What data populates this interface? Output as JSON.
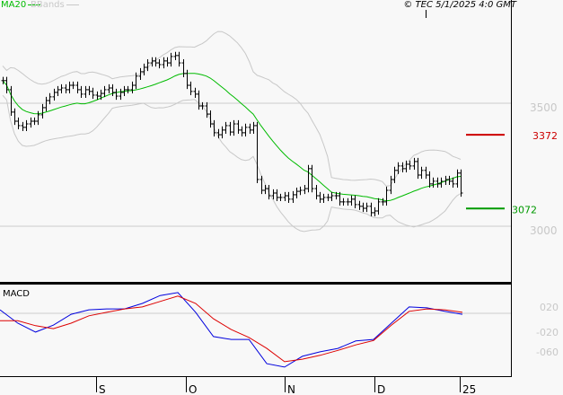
{
  "header": {
    "legend": [
      {
        "name": "MA20",
        "color": "#00bb00"
      },
      {
        "name": "BBands",
        "color": "#c8c8c8"
      }
    ],
    "copyright": "© TEC 5/1/2025 4:0 GMT"
  },
  "chart_data": [
    {
      "type": "ohlc-bar",
      "panel": "price",
      "overlays": [
        "MA20",
        "BBands"
      ],
      "y_ticks": [
        {
          "value": 35.0,
          "label": "3500"
        },
        {
          "value": 30.0,
          "label": "3000"
        }
      ],
      "grid": true,
      "markers": [
        {
          "label": "3372",
          "value": 33.72,
          "color": "#cc0000"
        },
        {
          "label": "3072",
          "value": 30.72,
          "color": "#009900"
        }
      ],
      "closes": [
        35.92,
        35.55,
        34.64,
        34.27,
        34.09,
        34.02,
        34.16,
        34.27,
        34.27,
        34.53,
        34.82,
        35.11,
        35.26,
        35.44,
        35.55,
        35.62,
        35.55,
        35.73,
        35.73,
        35.55,
        35.37,
        35.55,
        35.48,
        35.33,
        35.29,
        35.4,
        35.55,
        35.62,
        35.44,
        35.29,
        35.44,
        35.55,
        35.55,
        35.73,
        36.1,
        36.28,
        36.46,
        36.64,
        36.72,
        36.64,
        36.57,
        36.72,
        36.64,
        36.9,
        36.94,
        36.64,
        36.21,
        35.73,
        35.48,
        35.37,
        34.89,
        34.89,
        34.56,
        34.16,
        33.8,
        33.72,
        33.91,
        34.09,
        33.83,
        34.16,
        33.91,
        33.8,
        34.02,
        33.91,
        34.09,
        31.9,
        31.46,
        31.53,
        31.24,
        31.35,
        31.17,
        31.17,
        31.24,
        31.1,
        31.28,
        31.42,
        31.46,
        31.53,
        32.34,
        31.53,
        31.24,
        31.1,
        31.17,
        31.17,
        31.24,
        31.24,
        30.99,
        30.99,
        30.99,
        31.1,
        30.88,
        30.81,
        30.73,
        30.81,
        30.55,
        30.62,
        30.99,
        30.99,
        31.46,
        31.9,
        32.27,
        32.45,
        32.34,
        32.52,
        32.45,
        32.63,
        32.08,
        32.27,
        32.08,
        31.72,
        31.83,
        31.72,
        31.83,
        31.9,
        31.83,
        31.72,
        32.16,
        31.35
      ]
    },
    {
      "type": "line",
      "panel": "MACD",
      "title": "MACD",
      "y_ticks": [
        {
          "value": 0.2,
          "label": "020"
        },
        {
          "value": -0.2,
          "label": "-020"
        },
        {
          "value": -0.6,
          "label": "-060"
        }
      ],
      "series": [
        {
          "color": "#0000dd",
          "values": [
            0.27,
            0.0,
            -0.18,
            -0.04,
            0.18,
            0.27,
            0.29,
            0.29,
            0.4,
            0.56,
            0.62,
            0.22,
            -0.27,
            -0.33,
            -0.33,
            -0.82,
            -0.89,
            -0.67,
            -0.58,
            -0.51,
            -0.36,
            -0.33,
            0.0,
            0.33,
            0.31,
            0.24,
            0.18
          ]
        },
        {
          "color": "#dd0000",
          "values": [
            0.05,
            0.05,
            -0.05,
            -0.11,
            0.0,
            0.15,
            0.22,
            0.29,
            0.33,
            0.44,
            0.55,
            0.4,
            0.09,
            -0.13,
            -0.29,
            -0.51,
            -0.78,
            -0.73,
            -0.65,
            -0.55,
            -0.44,
            -0.35,
            -0.04,
            0.24,
            0.29,
            0.27,
            0.22
          ]
        }
      ]
    }
  ],
  "x_axis": {
    "ticks": [
      "S",
      "O",
      "N",
      "D",
      "25"
    ]
  }
}
